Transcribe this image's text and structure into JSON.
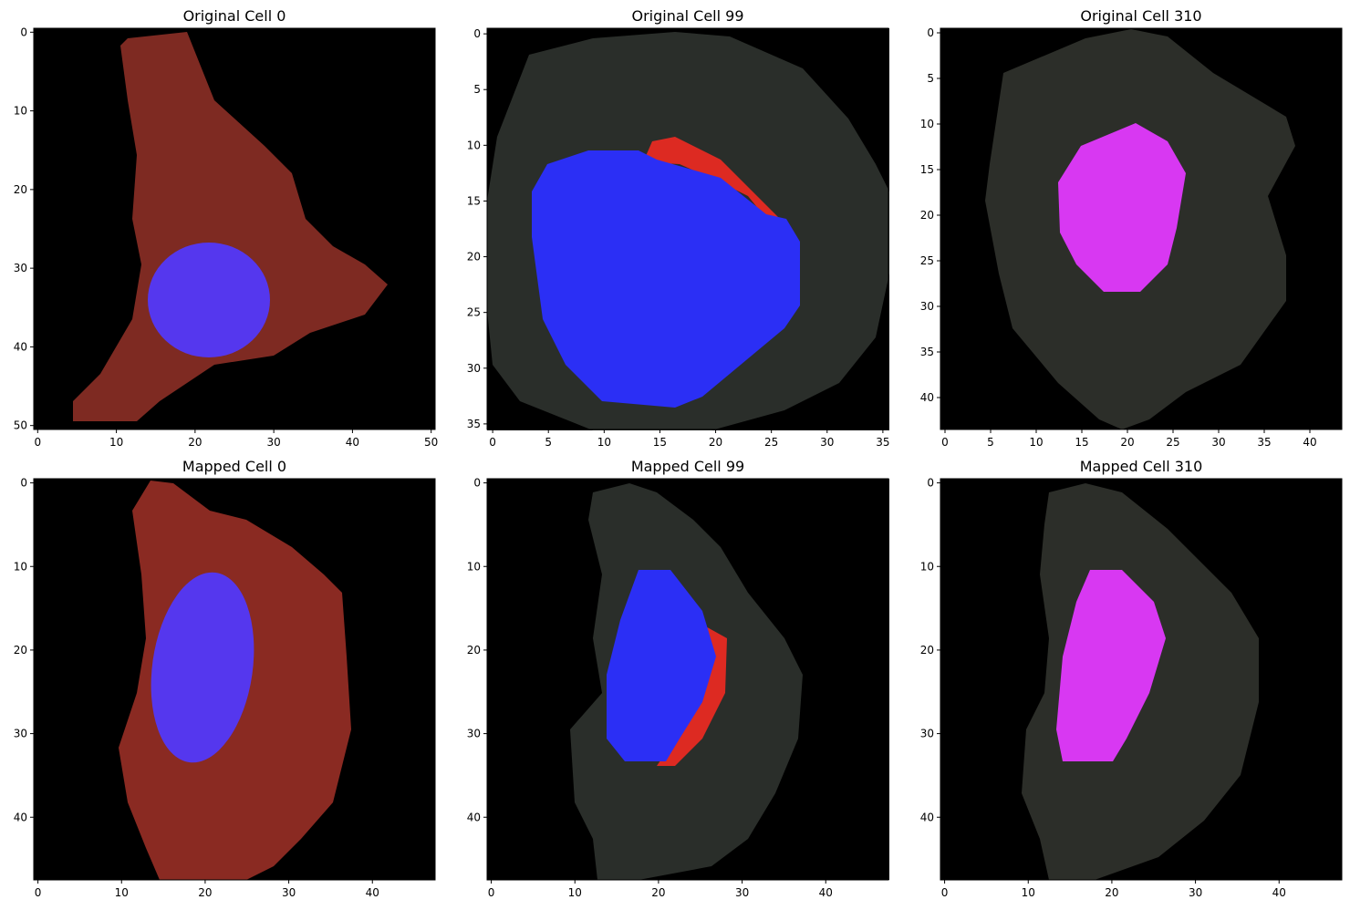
{
  "chart_data": [
    {
      "type": "image",
      "title": "Original Cell 0",
      "xlim": [
        -0.5,
        50.5
      ],
      "ylim": [
        50.5,
        -0.5
      ],
      "xticks": [
        0,
        10,
        20,
        30,
        40,
        50
      ],
      "yticks": [
        0,
        10,
        20,
        30,
        40,
        50
      ]
    },
    {
      "type": "image",
      "title": "Original Cell 99",
      "xlim": [
        -0.5,
        35.5
      ],
      "ylim": [
        35.5,
        -0.5
      ],
      "xticks": [
        0,
        5,
        10,
        15,
        20,
        25,
        30,
        35
      ],
      "yticks": [
        0,
        5,
        10,
        15,
        20,
        25,
        30,
        35
      ]
    },
    {
      "type": "image",
      "title": "Original Cell 310",
      "xlim": [
        -0.5,
        43.5
      ],
      "ylim": [
        43.5,
        -0.5
      ],
      "xticks": [
        0,
        5,
        10,
        15,
        20,
        25,
        30,
        35,
        40
      ],
      "yticks": [
        0,
        5,
        10,
        15,
        20,
        25,
        30,
        35,
        40
      ]
    },
    {
      "type": "image",
      "title": "Mapped Cell 0",
      "xlim": [
        -0.5,
        47.5
      ],
      "ylim": [
        47.5,
        -0.5
      ],
      "xticks": [
        0,
        10,
        20,
        30,
        40
      ],
      "yticks": [
        0,
        10,
        20,
        30,
        40
      ]
    },
    {
      "type": "image",
      "title": "Mapped Cell 99",
      "xlim": [
        -0.5,
        47.5
      ],
      "ylim": [
        47.5,
        -0.5
      ],
      "xticks": [
        0,
        10,
        20,
        30,
        40
      ],
      "yticks": [
        0,
        10,
        20,
        30,
        40
      ]
    },
    {
      "type": "image",
      "title": "Mapped Cell 310",
      "xlim": [
        -0.5,
        47.5
      ],
      "ylim": [
        47.5,
        -0.5
      ],
      "xticks": [
        0,
        10,
        20,
        30,
        40
      ],
      "yticks": [
        0,
        10,
        20,
        30,
        40
      ]
    }
  ]
}
